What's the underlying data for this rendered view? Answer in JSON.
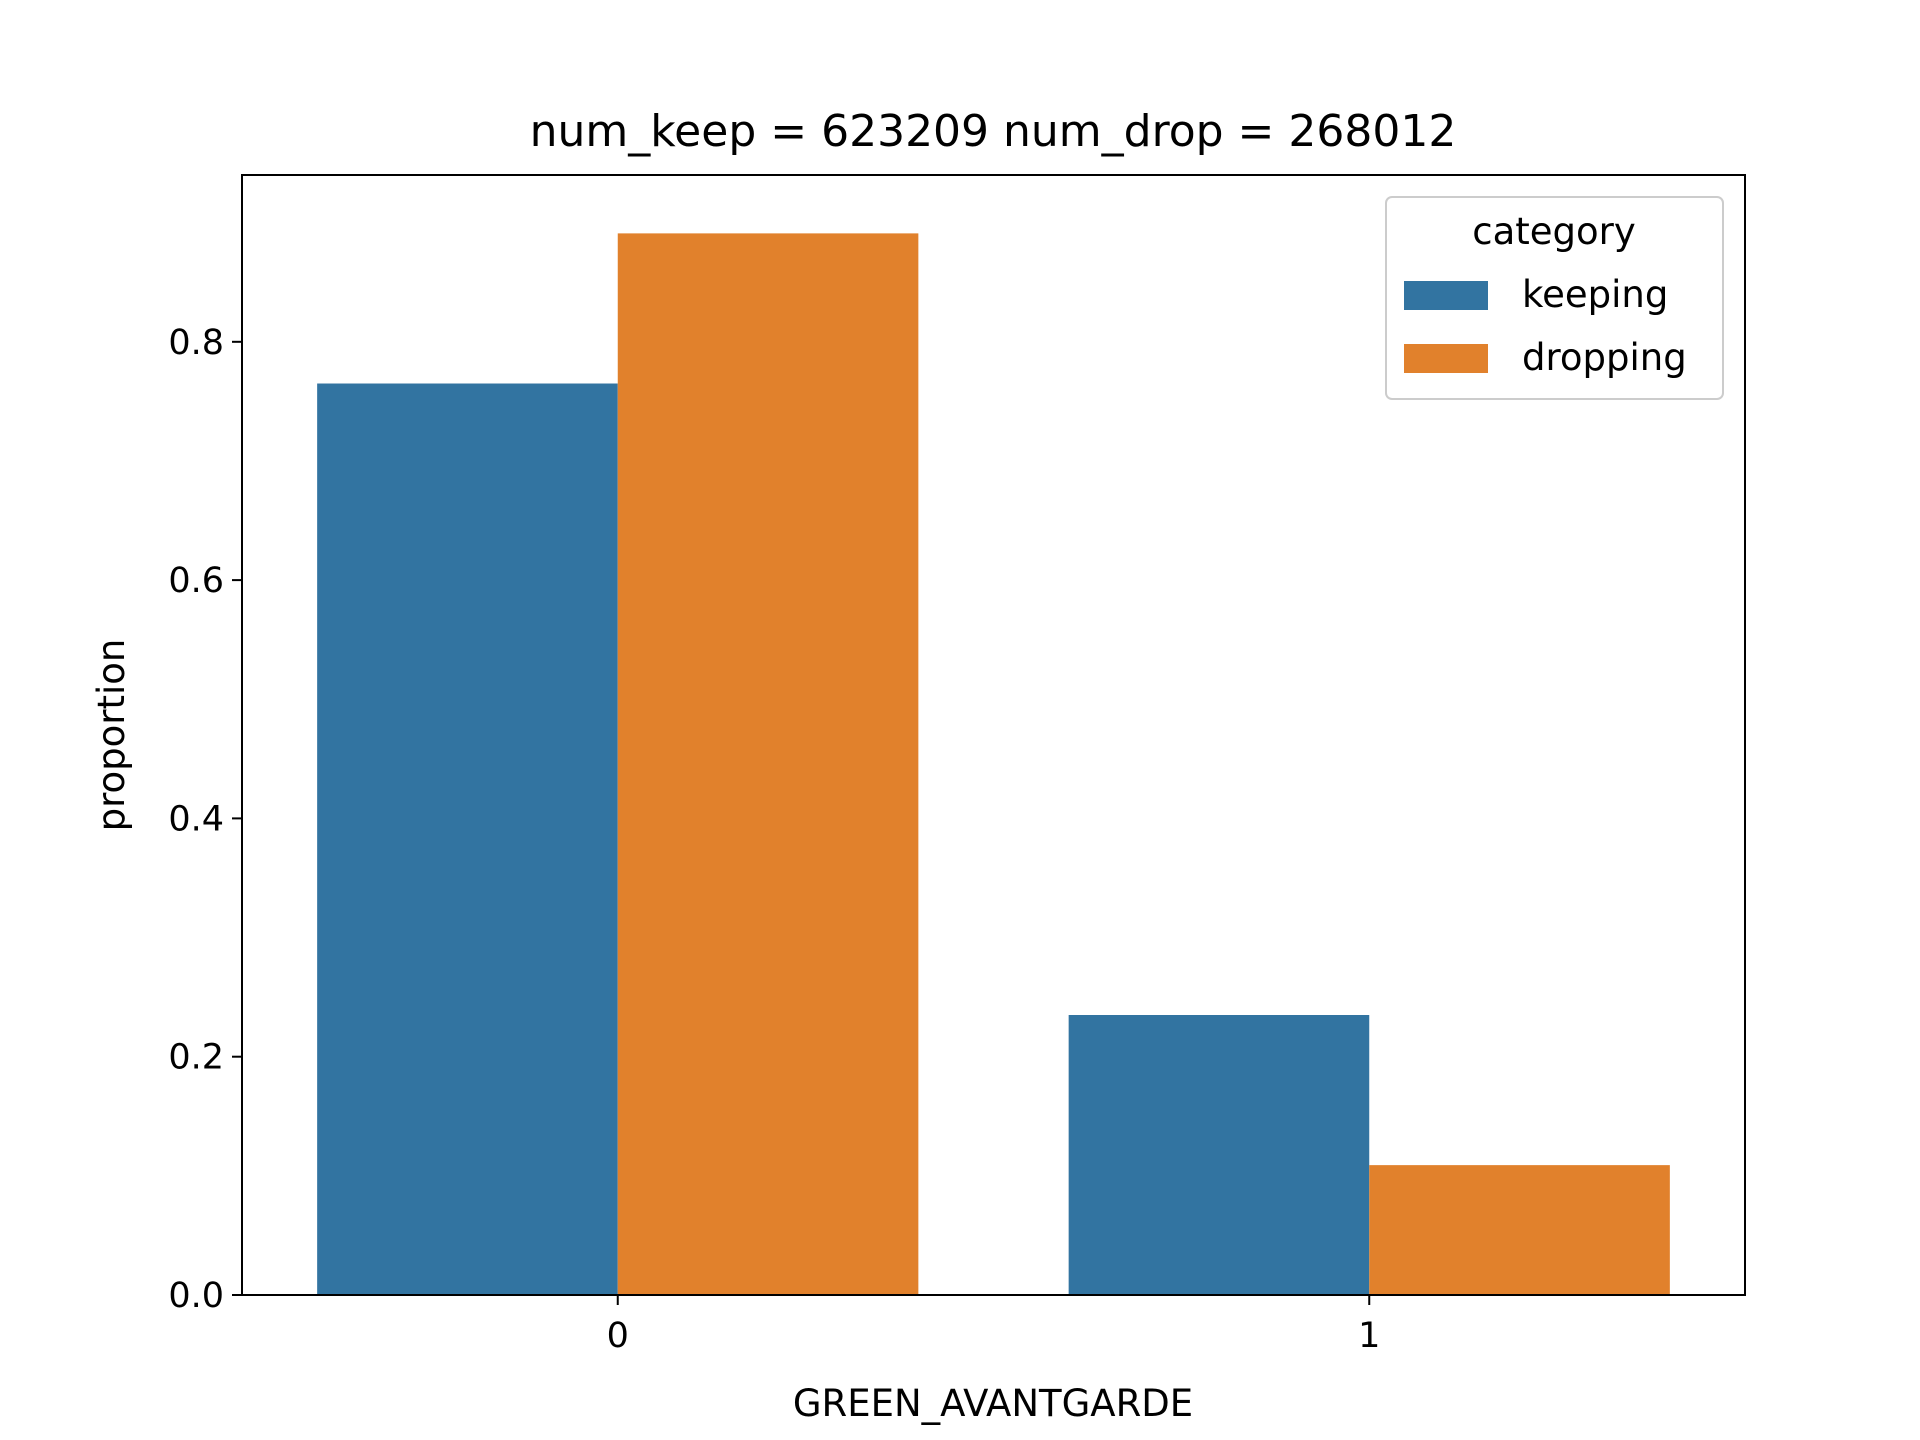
{
  "chart_data": {
    "type": "bar",
    "title": "num_keep = 623209  num_drop = 268012",
    "xlabel": "GREEN_AVANTGARDE",
    "ylabel": "proportion",
    "categories": [
      "0",
      "1"
    ],
    "series": [
      {
        "name": "keeping",
        "color": "#3274a1",
        "values": [
          0.765,
          0.235
        ]
      },
      {
        "name": "dropping",
        "color": "#e1812c",
        "values": [
          0.891,
          0.109
        ]
      }
    ],
    "ylim": [
      0,
      0.94
    ],
    "yticks": [
      0.0,
      0.2,
      0.4,
      0.6,
      0.8
    ],
    "ytick_labels": [
      "0.0",
      "0.2",
      "0.4",
      "0.6",
      "0.8"
    ],
    "grid": false,
    "legend": {
      "title": "category",
      "placement": "top-right"
    }
  }
}
